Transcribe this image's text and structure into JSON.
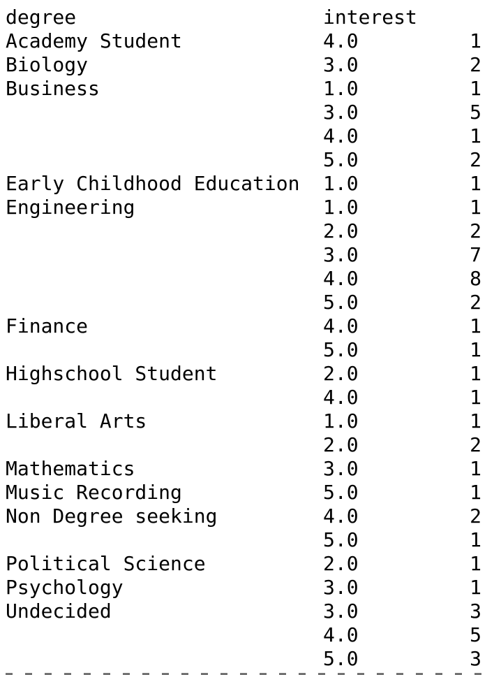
{
  "headers": {
    "degree": "degree",
    "interest": "interest"
  },
  "rows": [
    {
      "degree": "Academy Student",
      "interest": "4.0",
      "count": "1"
    },
    {
      "degree": "Biology",
      "interest": "3.0",
      "count": "2"
    },
    {
      "degree": "Business",
      "interest": "1.0",
      "count": "1"
    },
    {
      "degree": "",
      "interest": "3.0",
      "count": "5"
    },
    {
      "degree": "",
      "interest": "4.0",
      "count": "1"
    },
    {
      "degree": "",
      "interest": "5.0",
      "count": "2"
    },
    {
      "degree": "Early Childhood Education",
      "interest": "1.0",
      "count": "1"
    },
    {
      "degree": "Engineering",
      "interest": "1.0",
      "count": "1"
    },
    {
      "degree": "",
      "interest": "2.0",
      "count": "2"
    },
    {
      "degree": "",
      "interest": "3.0",
      "count": "7"
    },
    {
      "degree": "",
      "interest": "4.0",
      "count": "8"
    },
    {
      "degree": "",
      "interest": "5.0",
      "count": "2"
    },
    {
      "degree": "Finance",
      "interest": "4.0",
      "count": "1"
    },
    {
      "degree": "",
      "interest": "5.0",
      "count": "1"
    },
    {
      "degree": "Highschool Student",
      "interest": "2.0",
      "count": "1"
    },
    {
      "degree": "",
      "interest": "4.0",
      "count": "1"
    },
    {
      "degree": "Liberal Arts",
      "interest": "1.0",
      "count": "1"
    },
    {
      "degree": "",
      "interest": "2.0",
      "count": "2"
    },
    {
      "degree": "Mathematics",
      "interest": "3.0",
      "count": "1"
    },
    {
      "degree": "Music Recording",
      "interest": "5.0",
      "count": "1"
    },
    {
      "degree": "Non Degree seeking",
      "interest": "4.0",
      "count": "2"
    },
    {
      "degree": "",
      "interest": "5.0",
      "count": "1"
    },
    {
      "degree": "Political Science",
      "interest": "2.0",
      "count": "1"
    },
    {
      "degree": "Psychology",
      "interest": "3.0",
      "count": "1"
    },
    {
      "degree": "Undecided",
      "interest": "3.0",
      "count": "3"
    },
    {
      "degree": "",
      "interest": "4.0",
      "count": "5"
    },
    {
      "degree": "",
      "interest": "5.0",
      "count": "3"
    }
  ]
}
